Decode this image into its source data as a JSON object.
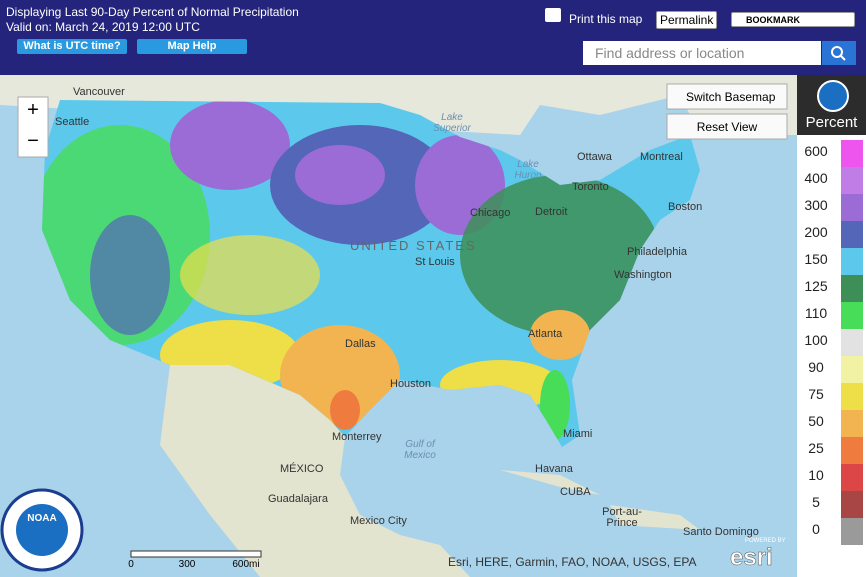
{
  "header": {
    "title": "Displaying Last 90-Day Percent of Normal Precipitation",
    "valid": "Valid on: March 24, 2019 12:00 UTC",
    "utc_button": "What is UTC time?",
    "help_button": "Map Help",
    "print": "Print this map",
    "permalink": "Permalink",
    "bookmark": "BOOKMARK",
    "search_placeholder": "Find address or location"
  },
  "map": {
    "zoom_in": "+",
    "zoom_out": "−",
    "switch_basemap": "Switch Basemap",
    "reset_view": "Reset View",
    "country_label": "UNITED STATES",
    "places": [
      {
        "lines": [
          "Vancouver"
        ]
      },
      {
        "lines": [
          "Seattle"
        ]
      },
      {
        "lines": [
          "Lake",
          "Superior"
        ]
      },
      {
        "lines": [
          "Lake",
          "Huron"
        ]
      },
      {
        "lines": [
          "Ottawa"
        ]
      },
      {
        "lines": [
          "Montreal"
        ]
      },
      {
        "lines": [
          "Toronto"
        ]
      },
      {
        "lines": [
          "Boston"
        ]
      },
      {
        "lines": [
          "Detroit"
        ]
      },
      {
        "lines": [
          "Chicago"
        ]
      },
      {
        "lines": [
          "Philadelphia"
        ]
      },
      {
        "lines": [
          "Washington"
        ]
      },
      {
        "lines": [
          "St Louis"
        ]
      },
      {
        "lines": [
          "Dallas"
        ]
      },
      {
        "lines": [
          "Houston"
        ]
      },
      {
        "lines": [
          "Atlanta"
        ]
      },
      {
        "lines": [
          "Miami"
        ]
      },
      {
        "lines": [
          "Gulf of",
          "Mexico"
        ]
      },
      {
        "lines": [
          "Havana"
        ]
      },
      {
        "lines": [
          "CUBA"
        ]
      },
      {
        "lines": [
          "MÉXICO"
        ]
      },
      {
        "lines": [
          "Monterrey"
        ]
      },
      {
        "lines": [
          "Guadalajara"
        ]
      },
      {
        "lines": [
          "Mexico City"
        ]
      },
      {
        "lines": [
          "Port-au-",
          "Prince"
        ]
      },
      {
        "lines": [
          "Santo Domingo"
        ]
      }
    ],
    "scale": [
      "0",
      "300",
      "600mi"
    ],
    "attribution": "Esri, HERE, Garmin, FAO, NOAA, USGS, EPA",
    "powered": "POWERED BY",
    "esri": "esri",
    "noaa": "NOAA",
    "help": "?"
  },
  "legend": {
    "title": "Percent",
    "items": [
      {
        "label": "600",
        "color": "#ee55ee"
      },
      {
        "label": "400",
        "color": "#c07de6"
      },
      {
        "label": "300",
        "color": "#9b6bd6"
      },
      {
        "label": "200",
        "color": "#5466b8"
      },
      {
        "label": "150",
        "color": "#5cc9ec"
      },
      {
        "label": "125",
        "color": "#3d8f57"
      },
      {
        "label": "110",
        "color": "#47dd58"
      },
      {
        "label": "100",
        "color": "#e2e2e2"
      },
      {
        "label": "90",
        "color": "#f2f2a4"
      },
      {
        "label": "75",
        "color": "#eede48"
      },
      {
        "label": "50",
        "color": "#f2b451"
      },
      {
        "label": "25",
        "color": "#ef7c3e"
      },
      {
        "label": "10",
        "color": "#dd4646"
      },
      {
        "label": "5",
        "color": "#a84646"
      },
      {
        "label": "0",
        "color": "#9a9a9a"
      }
    ]
  }
}
